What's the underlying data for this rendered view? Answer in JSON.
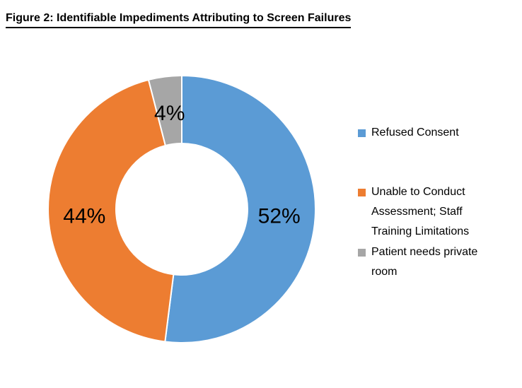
{
  "title": "Figure 2: Identifiable Impediments Attributing to Screen Failures",
  "chart_data": {
    "type": "pie",
    "subtype": "donut",
    "title": "Figure 2: Identifiable Impediments Attributing to Screen Failures",
    "categories": [
      "Refused Consent",
      "Unable to Conduct Assessment; Staff Training Limitations",
      "Patient needs private room"
    ],
    "values": [
      52,
      44,
      4
    ],
    "unit": "%",
    "data_labels": [
      "52%",
      "44%",
      "4%"
    ],
    "colors": [
      "#5B9BD5",
      "#ED7D31",
      "#A6A6A6"
    ],
    "start_angle_deg": 0,
    "direction": "clockwise",
    "hole_ratio": 0.49,
    "legend_position": "right",
    "background_color": "#FFFFFF",
    "slice_border_color": "#FFFFFF"
  },
  "legend": {
    "items": [
      {
        "label": "Refused Consent",
        "color": "#5B9BD5"
      },
      {
        "label": "Unable to Conduct Assessment; Staff Training Limitations",
        "color": "#ED7D31"
      },
      {
        "label": "Patient needs private room",
        "color": "#A6A6A6"
      }
    ]
  }
}
